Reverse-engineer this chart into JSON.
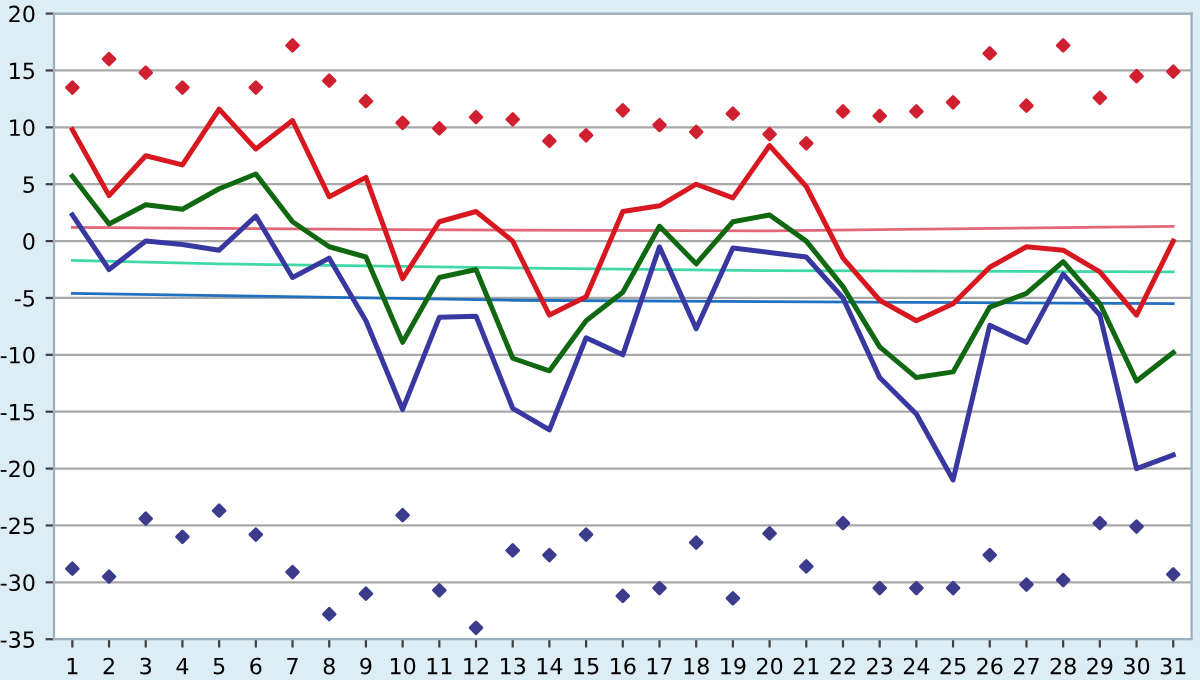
{
  "chart_data": {
    "type": "line",
    "x": [
      1,
      2,
      3,
      4,
      5,
      6,
      7,
      8,
      9,
      10,
      11,
      12,
      13,
      14,
      15,
      16,
      17,
      18,
      19,
      20,
      21,
      22,
      23,
      24,
      25,
      26,
      27,
      28,
      29,
      30,
      31
    ],
    "xlim": [
      0.5,
      31.5
    ],
    "xticks": [
      1,
      2,
      3,
      4,
      5,
      6,
      7,
      8,
      9,
      10,
      11,
      12,
      13,
      14,
      15,
      16,
      17,
      18,
      19,
      20,
      21,
      22,
      23,
      24,
      25,
      26,
      27,
      28,
      29,
      30,
      31
    ],
    "ylim": [
      -35,
      20
    ],
    "yticks": [
      -35,
      -30,
      -25,
      -20,
      -15,
      -10,
      -5,
      0,
      5,
      10,
      15,
      20
    ],
    "grid": "y",
    "legend": false,
    "series": [
      {
        "color": "#e06878",
        "x": [
          1,
          10,
          20,
          23,
          31
        ],
        "values": [
          1.2,
          1.0,
          0.9,
          1.0,
          1.3
        ]
      },
      {
        "color": "#40d8a8",
        "x": [
          1,
          5,
          14,
          20,
          31
        ],
        "values": [
          -1.7,
          -2.0,
          -2.4,
          -2.6,
          -2.7
        ]
      },
      {
        "color": "#2070c0",
        "x": [
          1,
          5,
          13,
          31
        ],
        "values": [
          -4.6,
          -4.8,
          -5.2,
          -5.5
        ]
      },
      {
        "color": "#d81820",
        "values": [
          9.8,
          4,
          7.5,
          6.7,
          11.6,
          8.1,
          10.6,
          3.9,
          5.6,
          -3.3,
          1.7,
          2.6,
          0,
          -6.5,
          -4.9,
          2.6,
          3.1,
          5,
          3.8,
          8.4,
          4.8,
          -1.5,
          -5.2,
          -7,
          -5.5,
          -2.3,
          -0.5,
          -0.8,
          -2.7,
          -6.5,
          0
        ]
      },
      {
        "color": "#106810",
        "values": [
          5.7,
          1.5,
          3.2,
          2.8,
          4.6,
          5.9,
          1.7,
          -0.5,
          -1.4,
          -8.9,
          -3.2,
          -2.5,
          -10.3,
          -11.4,
          -7,
          -4.5,
          1.3,
          -2,
          1.7,
          2.3,
          0,
          -4,
          -9.3,
          -12,
          -11.5,
          -5.8,
          -4.6,
          -1.8,
          -5.5,
          -12.3,
          -9.8
        ]
      },
      {
        "color": "#3838a0",
        "values": [
          2.3,
          -2.5,
          0,
          -0.3,
          -0.8,
          2.2,
          -3.2,
          -1.5,
          -7,
          -14.8,
          -6.7,
          -6.6,
          -14.7,
          -16.6,
          -8.5,
          -10,
          -0.5,
          -7.7,
          -0.6,
          -1,
          -1.4,
          -5,
          -12,
          -15.2,
          -21,
          -7.4,
          -8.9,
          -2.9,
          -6.5,
          -20,
          -18.8
        ]
      },
      {
        "type": "scatter",
        "marker": "diamond",
        "color": "#d02030",
        "values": [
          13.5,
          16,
          14.8,
          13.5,
          null,
          13.5,
          17.2,
          14.1,
          12.3,
          10.4,
          9.9,
          10.9,
          10.7,
          8.8,
          9.3,
          11.5,
          10.2,
          9.6,
          11.2,
          9.4,
          8.6,
          11.4,
          11,
          11.4,
          12.2,
          16.5,
          11.9,
          17.2,
          12.6,
          14.5,
          14.9
        ]
      },
      {
        "type": "scatter",
        "marker": "diamond",
        "color": "#3c3c8c",
        "values": [
          -28.8,
          -29.5,
          -24.4,
          -26,
          -23.7,
          -25.8,
          -29.1,
          -32.8,
          -31,
          -24.1,
          -30.7,
          -34,
          -27.2,
          -27.6,
          -25.8,
          -31.2,
          -30.5,
          -26.5,
          -31.4,
          -25.7,
          -28.6,
          -24.8,
          -30.5,
          -30.5,
          -30.5,
          -27.6,
          -30.2,
          -29.8,
          -24.8,
          -25.1,
          -29.3
        ]
      }
    ]
  }
}
